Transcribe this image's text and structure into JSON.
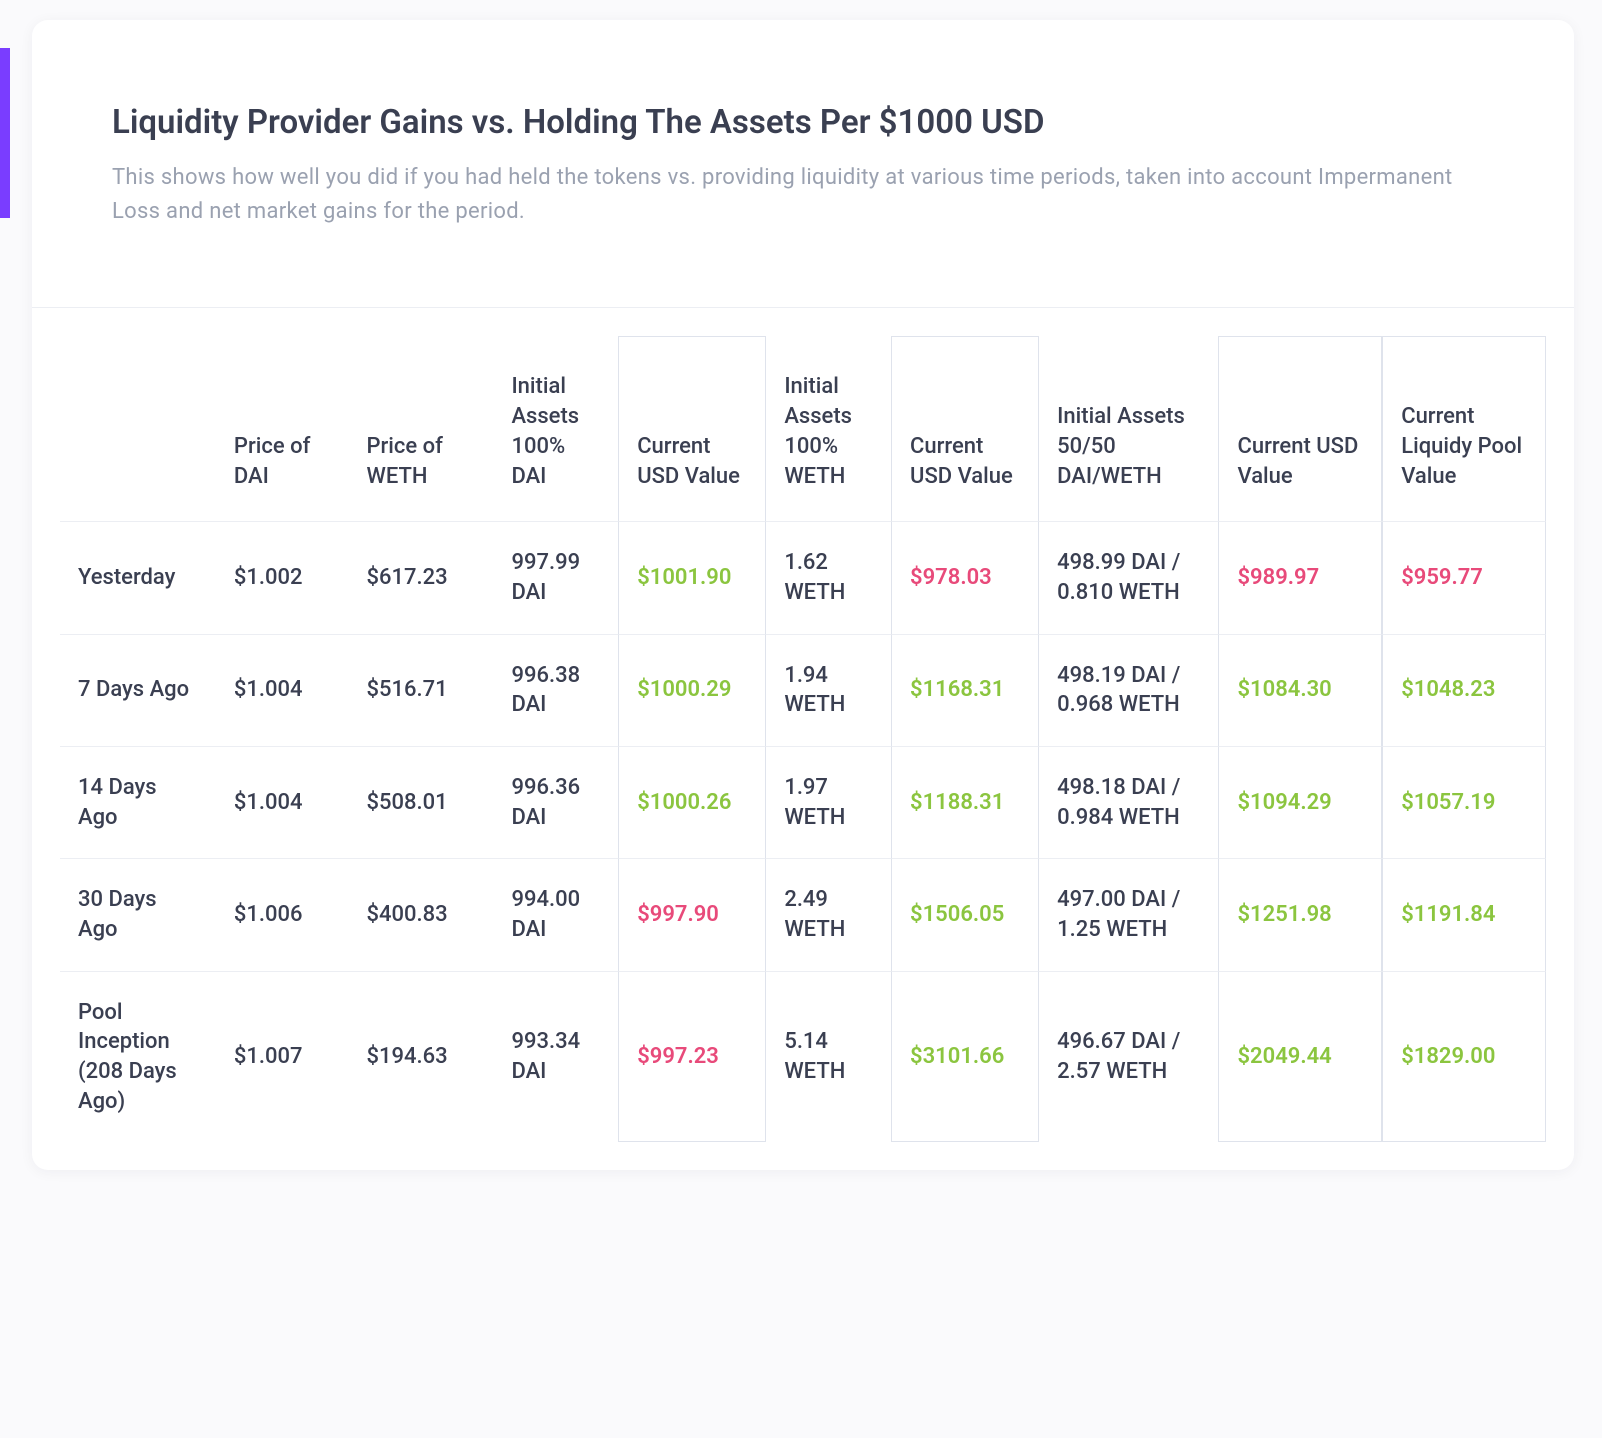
{
  "colors": {
    "accent": "#7a3dff",
    "text_primary": "#3a3f51",
    "text_muted": "#9aa1b0",
    "positive": "#8bc53f",
    "negative": "#e84a7a",
    "border": "#dfe3ec",
    "row_border": "#eceef3",
    "card_bg": "#ffffff",
    "page_bg": "#fafafc"
  },
  "header": {
    "title": "Liquidity Provider Gains vs. Holding The Assets Per $1000 USD",
    "subtitle": "This shows how well you did if you had held the tokens vs. providing liquidity at various time periods, taken into account Impermanent Loss and net market gains for the period."
  },
  "table": {
    "columns": [
      {
        "key": "label",
        "header": "",
        "boxed": false
      },
      {
        "key": "price_dai",
        "header": "Price of DAI",
        "boxed": false
      },
      {
        "key": "price_weth",
        "header": "Price of WETH",
        "boxed": false
      },
      {
        "key": "ia_dai",
        "header": "Initial Assets 100% DAI",
        "boxed": false
      },
      {
        "key": "cv_dai",
        "header": "Current USD Value",
        "boxed": true
      },
      {
        "key": "ia_weth",
        "header": "Initial Assets 100% WETH",
        "boxed": false
      },
      {
        "key": "cv_weth",
        "header": "Current USD Value",
        "boxed": true
      },
      {
        "key": "ia_5050",
        "header": "Initial Assets 50/50 DAI/WETH",
        "boxed": false
      },
      {
        "key": "cv_5050",
        "header": "Current USD Value",
        "boxed": true
      },
      {
        "key": "lp_value",
        "header": "Current Liquidy Pool Value",
        "boxed": true
      }
    ],
    "rows": [
      {
        "label": "Yesterday",
        "price_dai": "$1.002",
        "price_weth": "$617.23",
        "ia_dai": "997.99 DAI",
        "cv_dai": {
          "text": "$1001.90",
          "tone": "pos"
        },
        "ia_weth": "1.62 WETH",
        "cv_weth": {
          "text": "$978.03",
          "tone": "neg"
        },
        "ia_5050": "498.99 DAI / 0.810 WETH",
        "cv_5050": {
          "text": "$989.97",
          "tone": "neg"
        },
        "lp_value": {
          "text": "$959.77",
          "tone": "neg"
        }
      },
      {
        "label": "7 Days Ago",
        "price_dai": "$1.004",
        "price_weth": "$516.71",
        "ia_dai": "996.38 DAI",
        "cv_dai": {
          "text": "$1000.29",
          "tone": "pos"
        },
        "ia_weth": "1.94 WETH",
        "cv_weth": {
          "text": "$1168.31",
          "tone": "pos"
        },
        "ia_5050": "498.19 DAI / 0.968 WETH",
        "cv_5050": {
          "text": "$1084.30",
          "tone": "pos"
        },
        "lp_value": {
          "text": "$1048.23",
          "tone": "pos"
        }
      },
      {
        "label": "14 Days Ago",
        "price_dai": "$1.004",
        "price_weth": "$508.01",
        "ia_dai": "996.36 DAI",
        "cv_dai": {
          "text": "$1000.26",
          "tone": "pos"
        },
        "ia_weth": "1.97 WETH",
        "cv_weth": {
          "text": "$1188.31",
          "tone": "pos"
        },
        "ia_5050": "498.18 DAI / 0.984 WETH",
        "cv_5050": {
          "text": "$1094.29",
          "tone": "pos"
        },
        "lp_value": {
          "text": "$1057.19",
          "tone": "pos"
        }
      },
      {
        "label": "30 Days Ago",
        "price_dai": "$1.006",
        "price_weth": "$400.83",
        "ia_dai": "994.00 DAI",
        "cv_dai": {
          "text": "$997.90",
          "tone": "neg"
        },
        "ia_weth": "2.49 WETH",
        "cv_weth": {
          "text": "$1506.05",
          "tone": "pos"
        },
        "ia_5050": "497.00 DAI / 1.25 WETH",
        "cv_5050": {
          "text": "$1251.98",
          "tone": "pos"
        },
        "lp_value": {
          "text": "$1191.84",
          "tone": "pos"
        }
      },
      {
        "label": "Pool Inception (208 Days Ago)",
        "price_dai": "$1.007",
        "price_weth": "$194.63",
        "ia_dai": "993.34 DAI",
        "cv_dai": {
          "text": "$997.23",
          "tone": "neg"
        },
        "ia_weth": "5.14 WETH",
        "cv_weth": {
          "text": "$3101.66",
          "tone": "pos"
        },
        "ia_5050": "496.67 DAI / 2.57 WETH",
        "cv_5050": {
          "text": "$2049.44",
          "tone": "pos"
        },
        "lp_value": {
          "text": "$1829.00",
          "tone": "pos"
        }
      }
    ]
  }
}
